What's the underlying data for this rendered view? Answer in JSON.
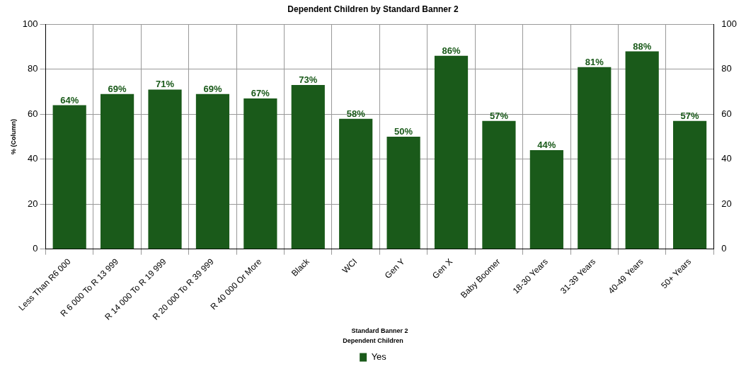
{
  "chart_data": {
    "type": "bar",
    "title": "Dependent Children by Standard Banner 2",
    "xlabel": "Standard Banner 2",
    "ylabel": "% (Column)",
    "legend_title": "Dependent Children",
    "categories": [
      "Less Than R6 000",
      "R 6 000 To R 13 999",
      "R 14 000 To R 19 999",
      "R 20 000 To R 39 999",
      "R 40 000 Or More",
      "Black",
      "WCI",
      "Gen Y",
      "Gen X",
      "Baby Boomer",
      "18-30 Years",
      "31-39 Years",
      "40-49 Years",
      "50+ Years"
    ],
    "series": [
      {
        "name": "Yes",
        "color": "#1a5a1a",
        "values": [
          64,
          69,
          71,
          69,
          67,
          73,
          58,
          50,
          86,
          57,
          44,
          81,
          88,
          57
        ],
        "value_labels": [
          "64%",
          "69%",
          "71%",
          "69%",
          "67%",
          "73%",
          "58%",
          "50%",
          "86%",
          "57%",
          "44%",
          "81%",
          "88%",
          "57%"
        ]
      }
    ],
    "ylim": [
      0,
      100
    ],
    "yticks": [
      0,
      20,
      40,
      60,
      80,
      100
    ],
    "y2lim": [
      0,
      100
    ],
    "y2ticks": [
      0,
      20,
      40,
      60,
      80,
      100
    ],
    "grid": true,
    "legend": "bottom"
  }
}
